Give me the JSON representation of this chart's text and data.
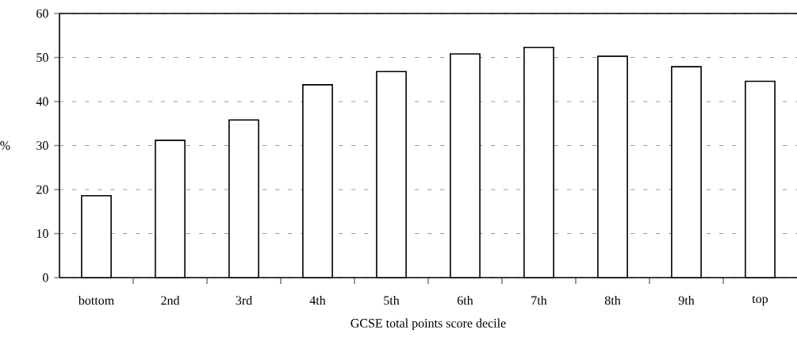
{
  "chart_data": {
    "type": "bar",
    "xlabel": "GCSE total points score decile",
    "ylabel": "%",
    "categories": [
      "bottom",
      "2nd",
      "3rd",
      "4th",
      "5th",
      "6th",
      "7th",
      "8th",
      "9th",
      "top"
    ],
    "values": [
      18.6,
      31.2,
      35.8,
      43.8,
      46.8,
      50.8,
      52.3,
      50.3,
      47.9,
      44.6
    ],
    "color": "#ffffff",
    "ylim": [
      0,
      60
    ],
    "yticks": [
      0,
      10,
      20,
      30,
      40,
      50,
      60
    ],
    "grid": "y"
  }
}
